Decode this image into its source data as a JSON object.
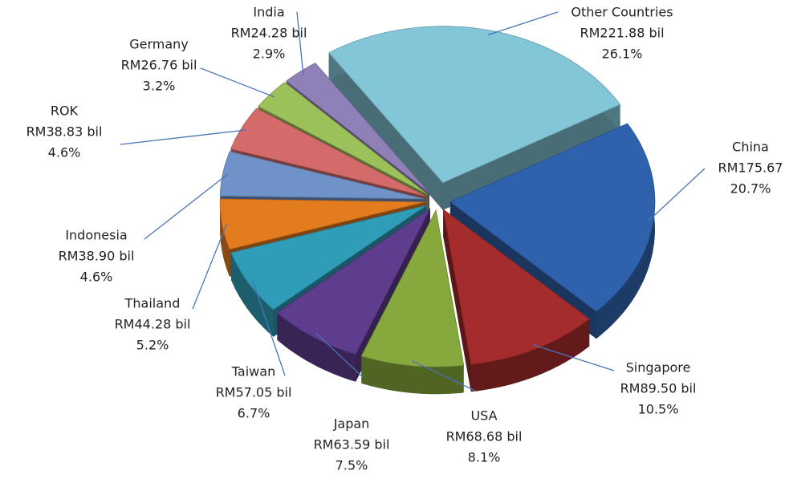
{
  "chart_data": {
    "type": "pie",
    "categories": [
      "China",
      "Singapore",
      "USA",
      "Japan",
      "Taiwan",
      "Thailand",
      "Indonesia",
      "ROK",
      "Germany",
      "India",
      "Other Countries"
    ],
    "values": [
      20.7,
      10.5,
      8.1,
      7.5,
      6.7,
      5.2,
      4.6,
      4.6,
      3.2,
      2.9,
      26.1
    ],
    "value_labels": [
      "20.7%",
      "10.5%",
      "8.1%",
      "7.5%",
      "6.7%",
      "5.2%",
      "4.6%",
      "4.6%",
      "3.2%",
      "2.9%",
      "26.1%"
    ],
    "amount_labels": [
      "RM175.67",
      "RM89.50 bil",
      "RM68.68 bil",
      "RM63.59 bil",
      "RM57.05 bil",
      "RM44.28 bil",
      "RM38.90 bil",
      "RM38.83 bil",
      "RM26.76 bil",
      "RM24.28 bil",
      "RM221.88 bil"
    ],
    "colors": [
      "#2f62ac",
      "#a52c2c",
      "#86a83c",
      "#5e3c8e",
      "#2f9db8",
      "#e37c1e",
      "#6f93c8",
      "#d46a6a",
      "#9cc05a",
      "#9080b8",
      "#82c6d8"
    ]
  }
}
